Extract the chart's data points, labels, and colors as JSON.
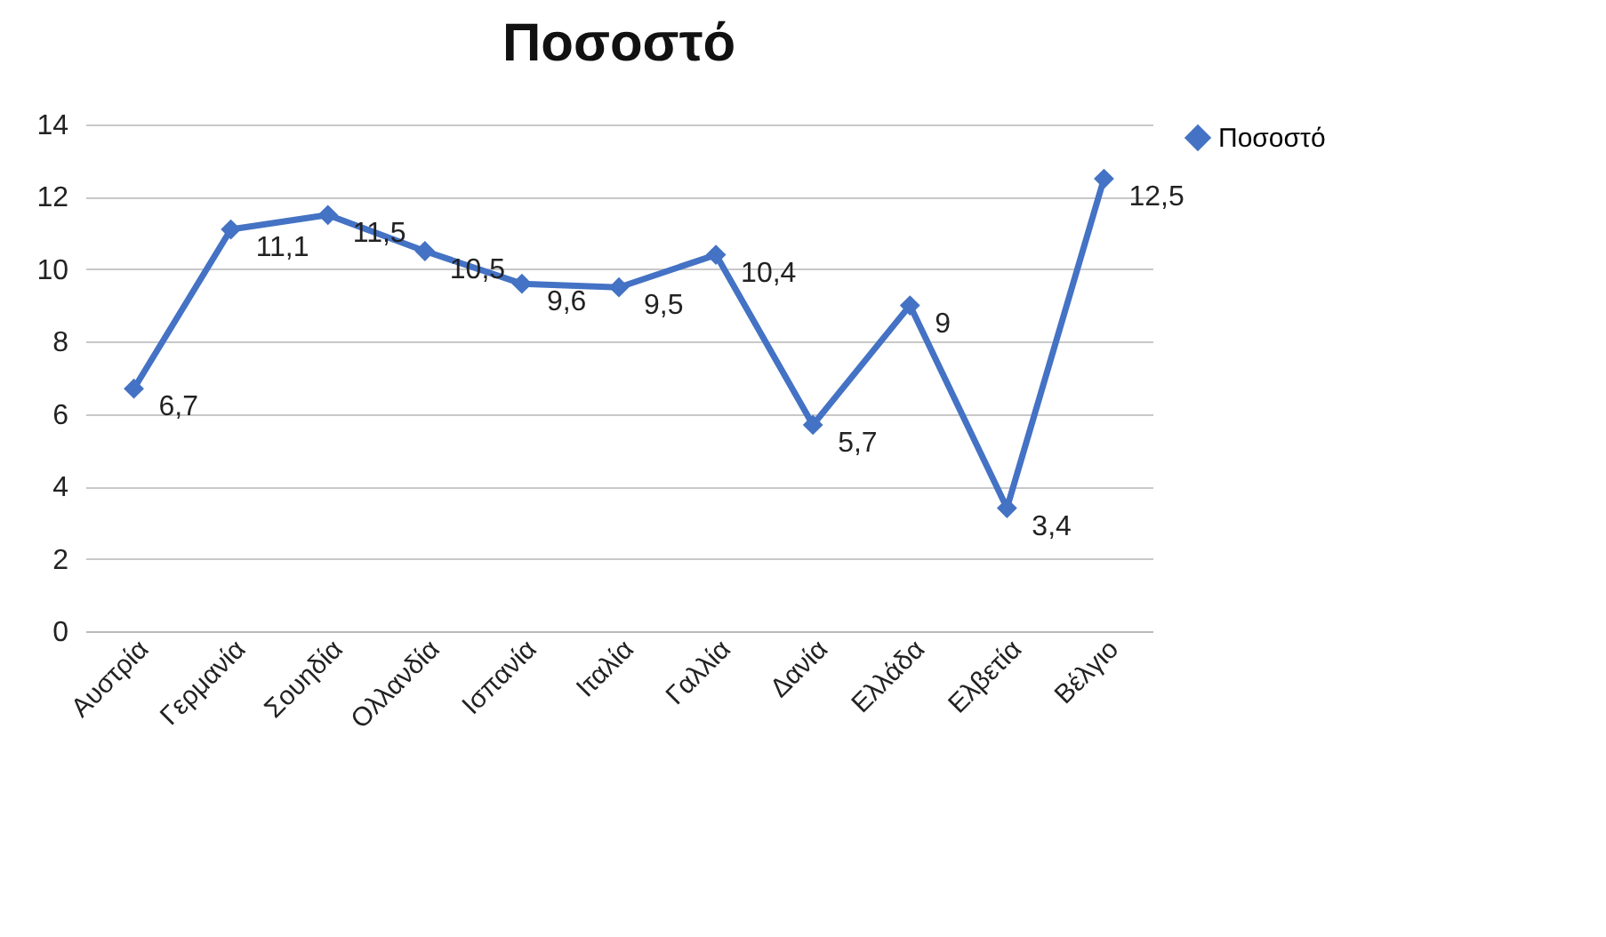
{
  "chart_data": {
    "type": "line",
    "title": "Ποσοστό",
    "categories": [
      "Αυστρία",
      "Γερμανία",
      "Σουηδία",
      "Ολλανδία",
      "Ισπανία",
      "Ιταλία",
      "Γαλλία",
      "Δανία",
      "Ελλάδα",
      "Ελβετία",
      "Βέλγιο"
    ],
    "series": [
      {
        "name": "Ποσοστό",
        "color": "#4472c4",
        "values": [
          6.7,
          11.1,
          11.5,
          10.5,
          9.6,
          9.5,
          10.4,
          5.7,
          9,
          3.4,
          12.5
        ],
        "value_labels": [
          "6,7",
          "11,1",
          "11,5",
          "10,5",
          "9,6",
          "9,5",
          "10,4",
          "5,7",
          "9",
          "3,4",
          "12,5"
        ]
      }
    ],
    "ylim": [
      0,
      14
    ],
    "yticks": [
      0,
      2,
      4,
      6,
      8,
      10,
      12,
      14
    ],
    "grid": "y",
    "legend": "right",
    "marker": "diamond"
  }
}
